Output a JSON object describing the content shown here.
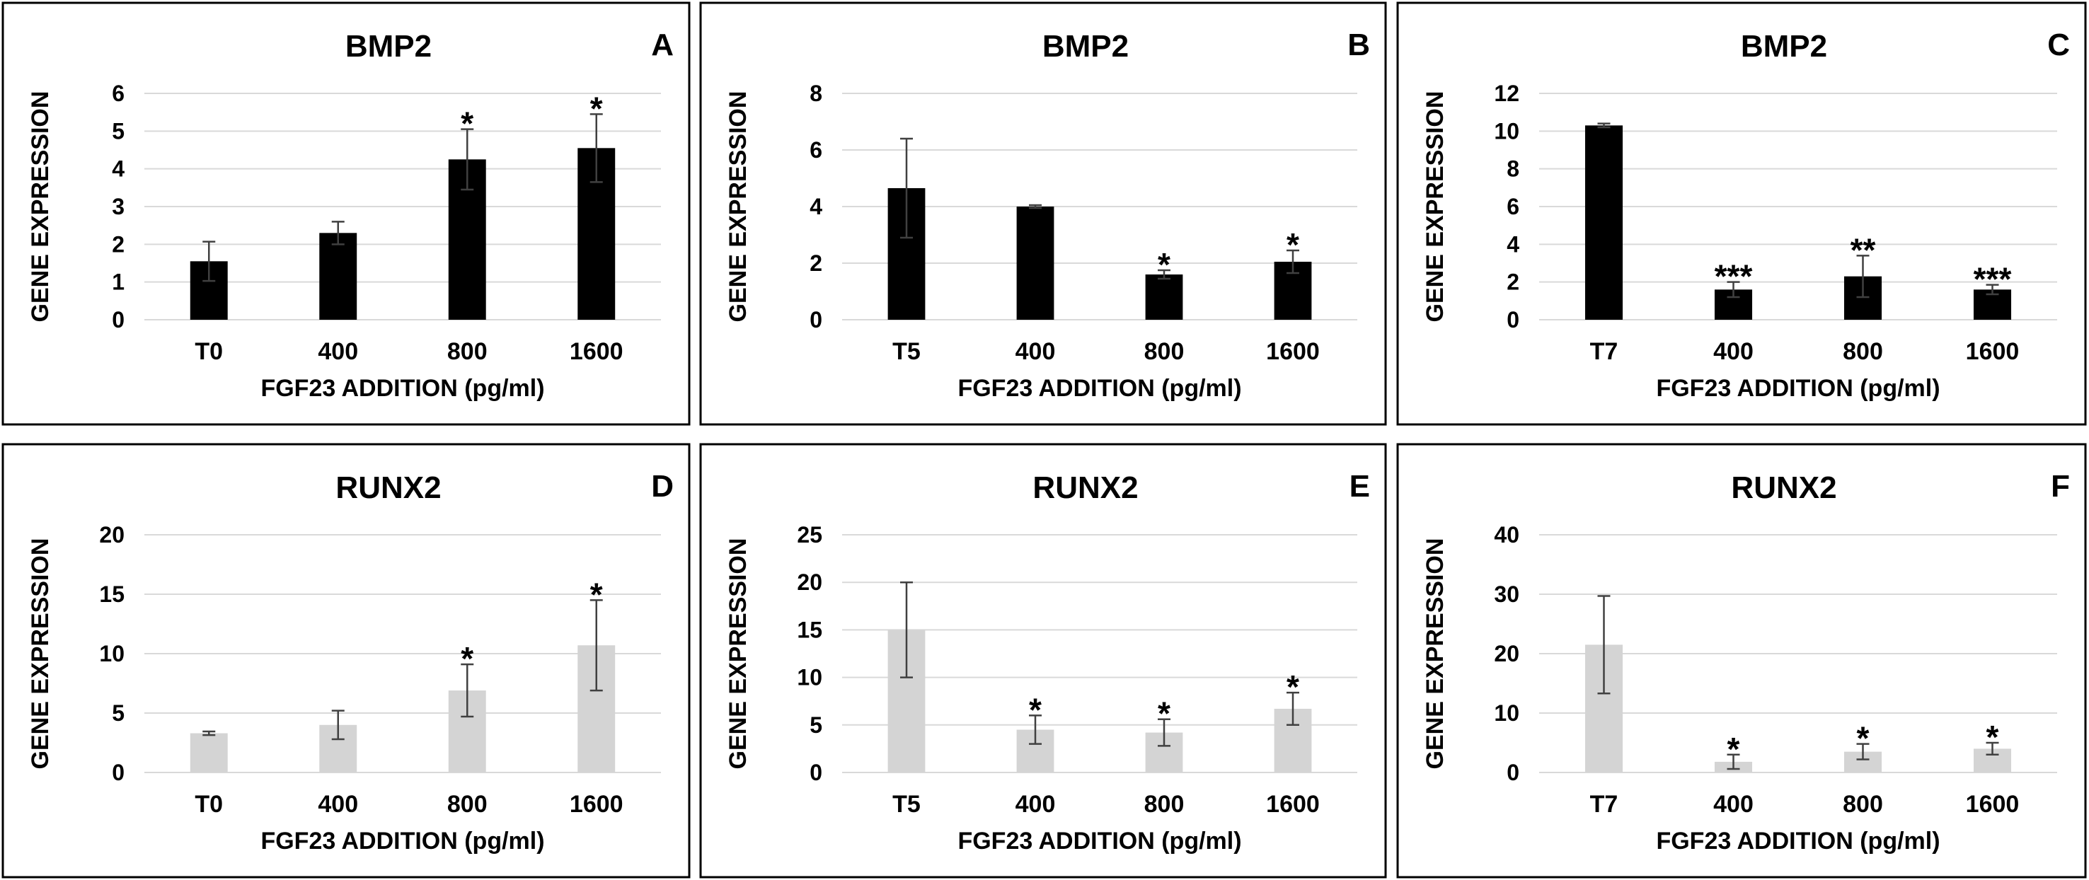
{
  "colors": {
    "bmp2_bar": "#000000",
    "runx2_bar": "#d4d4d4",
    "frame": "#000000",
    "grid": "#d9d9d9"
  },
  "chart_data": [
    {
      "id": "A",
      "type": "bar",
      "title": "BMP2",
      "letter": "A",
      "categories": [
        "T0",
        "400",
        "800",
        "1600"
      ],
      "values": [
        1.55,
        2.3,
        4.25,
        4.55
      ],
      "errors": [
        0.52,
        0.3,
        0.8,
        0.9
      ],
      "significance": [
        "",
        "",
        "*",
        "*"
      ],
      "ylim": [
        0,
        6
      ],
      "yticks": [
        0,
        1,
        2,
        3,
        4,
        5,
        6
      ],
      "xlabel": "FGF23 ADDITION (pg/ml)",
      "ylabel": "GENE EXPRESSION",
      "color": "#000000"
    },
    {
      "id": "B",
      "type": "bar",
      "title": "BMP2",
      "letter": "B",
      "categories": [
        "T5",
        "400",
        "800",
        "1600"
      ],
      "values": [
        4.65,
        4.0,
        1.6,
        2.05
      ],
      "errors": [
        1.75,
        0.05,
        0.15,
        0.4
      ],
      "significance": [
        "",
        "",
        "*",
        "*"
      ],
      "ylim": [
        0,
        8
      ],
      "yticks": [
        0,
        2,
        4,
        6,
        8
      ],
      "xlabel": "FGF23 ADDITION (pg/ml)",
      "ylabel": "GENE EXPRESSION",
      "color": "#000000"
    },
    {
      "id": "C",
      "type": "bar",
      "title": "BMP2",
      "letter": "C",
      "categories": [
        "T7",
        "400",
        "800",
        "1600"
      ],
      "values": [
        10.3,
        1.6,
        2.3,
        1.6
      ],
      "errors": [
        0.1,
        0.4,
        1.1,
        0.25
      ],
      "significance": [
        "",
        "***",
        "**",
        "***"
      ],
      "ylim": [
        0,
        12
      ],
      "yticks": [
        0,
        2,
        4,
        6,
        8,
        10,
        12
      ],
      "xlabel": "FGF23 ADDITION (pg/ml)",
      "ylabel": "GENE EXPRESSION",
      "color": "#000000"
    },
    {
      "id": "D",
      "type": "bar",
      "title": "RUNX2",
      "letter": "D",
      "categories": [
        "T0",
        "400",
        "800",
        "1600"
      ],
      "values": [
        3.3,
        4.0,
        6.9,
        10.7
      ],
      "errors": [
        0.15,
        1.2,
        2.2,
        3.8
      ],
      "significance": [
        "",
        "",
        "*",
        "*"
      ],
      "ylim": [
        0,
        20
      ],
      "yticks": [
        0,
        5,
        10,
        15,
        20
      ],
      "xlabel": "FGF23 ADDITION (pg/ml)",
      "ylabel": "GENE EXPRESSION",
      "color": "#d4d4d4"
    },
    {
      "id": "E",
      "type": "bar",
      "title": "RUNX2",
      "letter": "E",
      "categories": [
        "T5",
        "400",
        "800",
        "1600"
      ],
      "values": [
        15.0,
        4.5,
        4.2,
        6.7
      ],
      "errors": [
        5.0,
        1.5,
        1.4,
        1.7
      ],
      "significance": [
        "",
        "*",
        "*",
        "*"
      ],
      "ylim": [
        0,
        25
      ],
      "yticks": [
        0,
        5,
        10,
        15,
        20,
        25
      ],
      "xlabel": "FGF23 ADDITION (pg/ml)",
      "ylabel": "GENE EXPRESSION",
      "color": "#d4d4d4"
    },
    {
      "id": "F",
      "type": "bar",
      "title": "RUNX2",
      "letter": "F",
      "categories": [
        "T7",
        "400",
        "800",
        "1600"
      ],
      "values": [
        21.5,
        1.8,
        3.5,
        4.0
      ],
      "errors": [
        8.2,
        1.2,
        1.3,
        1.0
      ],
      "significance": [
        "",
        "*",
        "*",
        "*"
      ],
      "ylim": [
        0,
        40
      ],
      "yticks": [
        0,
        10,
        20,
        30,
        40
      ],
      "xlabel": "FGF23 ADDITION (pg/ml)",
      "ylabel": "GENE EXPRESSION",
      "color": "#d4d4d4"
    }
  ]
}
